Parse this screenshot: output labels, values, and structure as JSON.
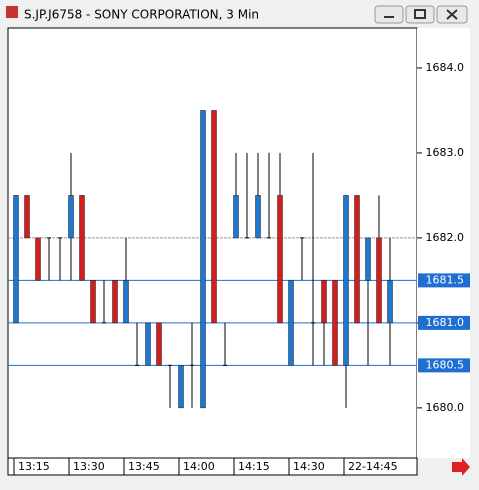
{
  "window_title": "S.JP.J6758 - SONY CORPORATION, 3 Min",
  "chart_data": {
    "type": "candlestick",
    "categories": [
      "13:15",
      null,
      null,
      null,
      null,
      "13:30",
      null,
      null,
      null,
      null,
      "13:45",
      null,
      null,
      null,
      null,
      "14:00",
      null,
      null,
      null,
      null,
      "14:15",
      null,
      null,
      null,
      null,
      "14:30",
      null,
      null,
      null,
      null,
      "22-14:45",
      null,
      null,
      null,
      null
    ],
    "open": [
      1681.0,
      1682.5,
      1682.0,
      1682.0,
      1682.0,
      1682.0,
      1682.5,
      1681.5,
      1681.0,
      1681.5,
      1681.0,
      1680.5,
      1680.5,
      1681.0,
      1680.5,
      1680.0,
      1680.5,
      1680.0,
      1683.5,
      1680.5,
      1682.0,
      1682.0,
      1682.0,
      1682.0,
      1682.5,
      1680.5,
      1682.0,
      1681.0,
      1681.5,
      1681.5,
      1680.5,
      1682.5,
      1681.5,
      1682.0,
      1681.0
    ],
    "high": [
      1682.5,
      1682.5,
      1682.0,
      1682.0,
      1682.0,
      1683.0,
      1682.5,
      1681.5,
      1681.5,
      1681.5,
      1682.0,
      1681.0,
      1681.0,
      1681.0,
      1680.5,
      1680.5,
      1681.0,
      1683.5,
      1683.5,
      1681.0,
      1683.0,
      1683.0,
      1683.0,
      1683.0,
      1683.0,
      1681.5,
      1682.0,
      1683.0,
      1681.5,
      1681.5,
      1682.5,
      1682.5,
      1682.0,
      1682.5,
      1682.0
    ],
    "low": [
      1681.0,
      1682.0,
      1681.5,
      1681.5,
      1681.5,
      1681.5,
      1681.5,
      1681.0,
      1681.0,
      1681.0,
      1681.0,
      1680.5,
      1680.5,
      1680.5,
      1680.0,
      1680.0,
      1680.0,
      1680.0,
      1681.0,
      1680.5,
      1682.0,
      1682.0,
      1682.0,
      1682.0,
      1681.0,
      1680.5,
      1681.5,
      1680.5,
      1680.5,
      1680.5,
      1680.0,
      1681.0,
      1680.5,
      1681.0,
      1680.5
    ],
    "close": [
      1682.5,
      1682.0,
      1681.5,
      1682.0,
      1682.0,
      1682.5,
      1681.5,
      1681.0,
      1681.0,
      1681.0,
      1681.5,
      1680.5,
      1681.0,
      1680.5,
      1680.5,
      1680.5,
      1680.5,
      1683.5,
      1681.0,
      1680.5,
      1682.5,
      1682.0,
      1682.5,
      1682.0,
      1681.0,
      1681.5,
      1682.0,
      1681.0,
      1681.0,
      1680.5,
      1682.5,
      1681.0,
      1682.0,
      1681.0,
      1681.5
    ],
    "up_color": "#1e78d2",
    "down_color": "#d21e1e",
    "ylim": [
      1679.41,
      1684.47
    ],
    "yticks": [
      {
        "value": 1680,
        "label": "1680.0"
      },
      {
        "value": 1681,
        "label": "1681.0"
      },
      {
        "value": 1682,
        "label": "1682.0"
      },
      {
        "value": 1683,
        "label": "1683.0"
      },
      {
        "value": 1684,
        "label": "1684.0"
      }
    ],
    "levels": [
      {
        "value": 1681.5,
        "label": "1681.5"
      },
      {
        "value": 1681,
        "label": "1681.0"
      },
      {
        "value": 1680.5,
        "label": "1680.5"
      }
    ],
    "level_color": "#1e6fd0",
    "price_line": 1682
  }
}
